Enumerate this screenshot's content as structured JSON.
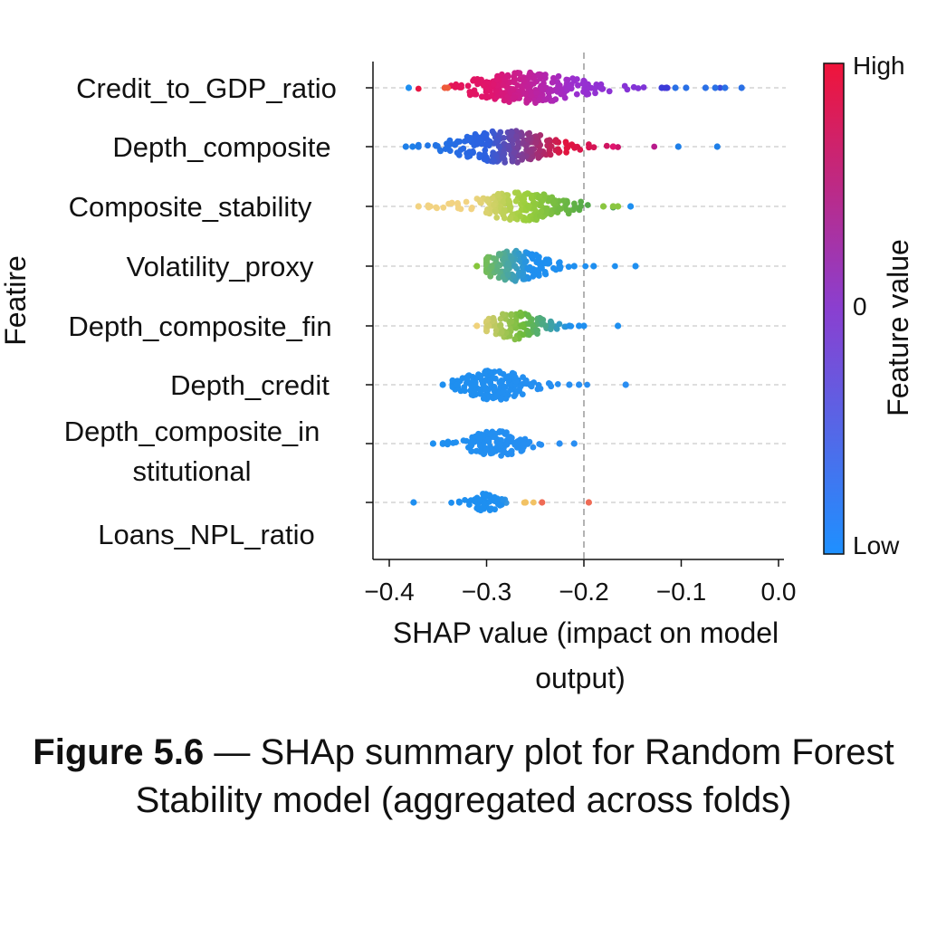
{
  "caption": {
    "label": "Figure 5.6",
    "text": " — SHAp summary plot  for Random Forest Stability model (aggregated across folds)"
  },
  "chart_data": {
    "type": "scatter",
    "subtype": "shap-beeswarm",
    "features": [
      "Credit_to_GDP_ratio",
      "Depth_composite",
      "Composite_stability",
      "Volatility_proxy",
      "Depth_composite_fin",
      "Depth_credit",
      "Depth_composite_in stitutional",
      "Loans_NPL_ratio"
    ],
    "feature_labels": [
      [
        "Credit_to_GDP_ratio"
      ],
      [
        "Depth_composite"
      ],
      [
        "Composite_stability"
      ],
      [
        "Volatility_proxy"
      ],
      [
        "Depth_composite_fin"
      ],
      [
        "Depth_credit"
      ],
      [
        "Depth_composite_in",
        "stitutional"
      ],
      [
        "Loans_NPL_ratio"
      ]
    ],
    "ylabel": "Featire",
    "xlabel_lines": [
      "SHAP value (impact on model",
      "output)"
    ],
    "xlim": [
      -0.4,
      0.0
    ],
    "xticks": [
      -0.4,
      -0.3,
      -0.2,
      -0.1,
      0.0
    ],
    "xtick_labels": [
      "−0.4",
      "−0.3",
      "−0.2",
      "−0.1",
      "0.0"
    ],
    "reference_line_x": -0.2,
    "colorbar": {
      "title": "Feature value",
      "high_label": "High",
      "mid_label": "0",
      "low_label": "Low"
    },
    "colors": {
      "high": "#e8173f",
      "mid": "#8a3fd0",
      "low": "#1e8ff0",
      "pos_yellow": "#f2d27a",
      "pos_green": "#3d9a5e",
      "grid": "#bdbdbd"
    },
    "series": [
      {
        "feature": "Credit_to_GDP_ratio",
        "center": -0.26,
        "spread": 0.035,
        "min": -0.38,
        "max": -0.04,
        "palette": "red-purple-blue",
        "outliers": [
          -0.38,
          -0.343,
          -0.34,
          -0.12,
          -0.115,
          -0.106,
          -0.095,
          -0.075,
          -0.065,
          -0.055,
          -0.038
        ]
      },
      {
        "feature": "Depth_composite",
        "center": -0.28,
        "spread": 0.03,
        "min": -0.38,
        "max": -0.06,
        "palette": "blue-red-purple",
        "outliers": [
          -0.383,
          -0.376,
          -0.17,
          -0.103,
          -0.063
        ]
      },
      {
        "feature": "Composite_stability",
        "center": -0.265,
        "spread": 0.03,
        "min": -0.37,
        "max": -0.15,
        "palette": "yellow-green",
        "outliers": [
          -0.37,
          -0.36,
          -0.18,
          -0.17,
          -0.165,
          -0.152
        ]
      },
      {
        "feature": "Volatility_proxy",
        "center": -0.27,
        "spread": 0.02,
        "min": -0.31,
        "max": -0.145,
        "palette": "green-blue",
        "outliers": [
          -0.31,
          -0.295,
          -0.225,
          -0.21,
          -0.19,
          -0.147
        ]
      },
      {
        "feature": "Depth_composite_fin",
        "center": -0.27,
        "spread": 0.018,
        "min": -0.31,
        "max": -0.165,
        "palette": "yellow-green-blue",
        "outliers": [
          -0.31,
          -0.298,
          -0.215,
          -0.205,
          -0.2,
          -0.165
        ]
      },
      {
        "feature": "Depth_credit",
        "center": -0.29,
        "spread": 0.02,
        "min": -0.345,
        "max": -0.16,
        "palette": "blue",
        "outliers": [
          -0.345,
          -0.33,
          -0.215,
          -0.205,
          -0.157
        ]
      },
      {
        "feature": "Depth_composite_in stitutional",
        "center": -0.29,
        "spread": 0.018,
        "min": -0.355,
        "max": -0.21,
        "palette": "blue",
        "outliers": [
          -0.355,
          -0.34,
          -0.225,
          -0.21
        ]
      },
      {
        "feature": "Loans_NPL_ratio",
        "center": -0.3,
        "spread": 0.01,
        "min": -0.375,
        "max": -0.195,
        "palette": "blue-orange",
        "outliers": [
          -0.375,
          -0.328,
          -0.26,
          -0.243,
          -0.195
        ]
      }
    ]
  }
}
